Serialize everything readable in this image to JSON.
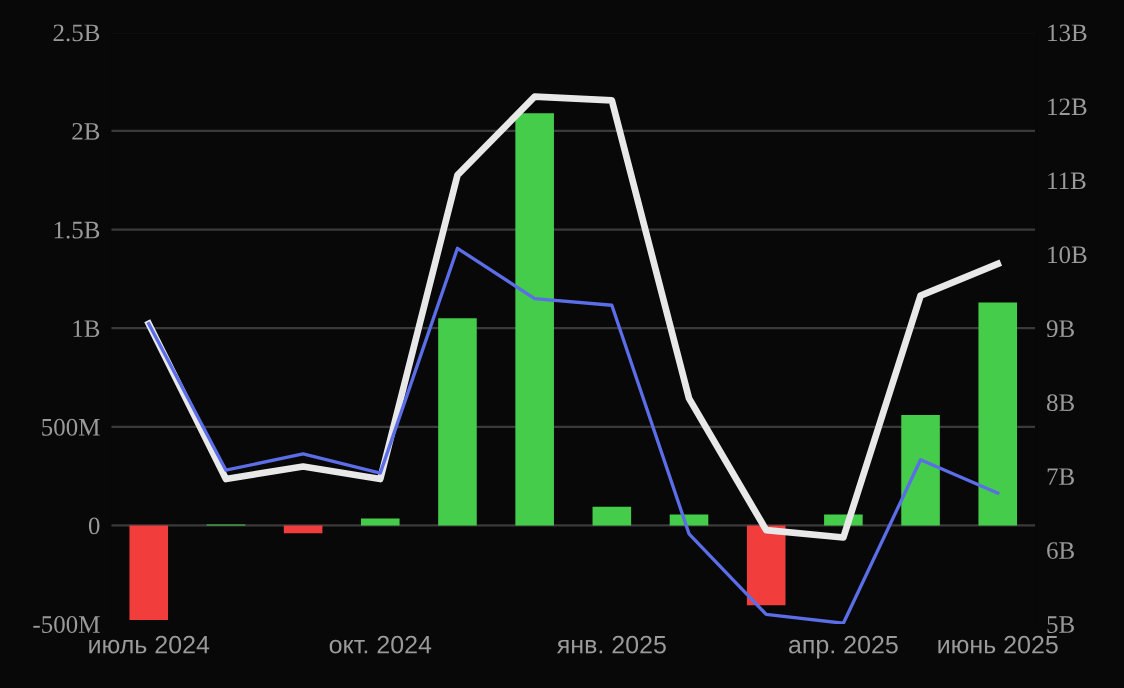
{
  "chart_data": {
    "type": "bar",
    "categories": [
      "июль 2024",
      null,
      null,
      "окт. 2024",
      null,
      null,
      "янв. 2025",
      null,
      null,
      "апр. 2025",
      null,
      "июнь 2025"
    ],
    "series": [
      {
        "values": [
          -480000000,
          5000000,
          -40000000,
          35000000,
          1050000000,
          2090000000,
          95000000,
          55000000,
          -405000000,
          55000000,
          560000000,
          1130000000
        ],
        "colors": [
          "#f23d3d",
          "#44cc4a",
          "#f23d3d",
          "#44cc4a",
          "#44cc4a",
          "#44cc4a",
          "#44cc4a",
          "#44cc4a",
          "#f23d3d",
          "#44cc4a",
          "#44cc4a",
          "#44cc4a"
        ]
      },
      {
        "type": "line",
        "axis": "y2",
        "color": "#e8e8e8",
        "values": [
          9060000000,
          6960000000,
          7130000000,
          6960000000,
          11070000000,
          12130000000,
          12080000000,
          8050000000,
          6270000000,
          6170000000,
          9440000000,
          9870000000
        ]
      },
      {
        "type": "line",
        "axis": "y2",
        "color": "#5b6ee8",
        "values": [
          9060000000,
          7080000000,
          7300000000,
          7040000000,
          10080000000,
          9400000000,
          9310000000,
          6220000000,
          5130000000,
          5010000000,
          7220000000,
          6770000000
        ]
      }
    ],
    "ylim": [
      -500000000,
      2500000000
    ],
    "yticks": [
      {
        "value": -500000000,
        "label": "-500M"
      },
      {
        "value": 0,
        "label": "0"
      },
      {
        "value": 500000000,
        "label": "500M"
      },
      {
        "value": 1000000000,
        "label": "1B"
      },
      {
        "value": 1500000000,
        "label": "1.5B"
      },
      {
        "value": 2000000000,
        "label": "2B"
      },
      {
        "value": 2500000000,
        "label": "2.5B"
      }
    ],
    "y2lim": [
      5000000000,
      13000000000
    ],
    "y2ticks": [
      {
        "value": 5000000000,
        "label": "5B"
      },
      {
        "value": 6000000000,
        "label": "6B"
      },
      {
        "value": 7000000000,
        "label": "7B"
      },
      {
        "value": 8000000000,
        "label": "8B"
      },
      {
        "value": 9000000000,
        "label": "9B"
      },
      {
        "value": 10000000000,
        "label": "10B"
      },
      {
        "value": 11000000000,
        "label": "11B"
      },
      {
        "value": 12000000000,
        "label": "12B"
      },
      {
        "value": 13000000000,
        "label": "13B"
      }
    ],
    "grid": "y"
  }
}
